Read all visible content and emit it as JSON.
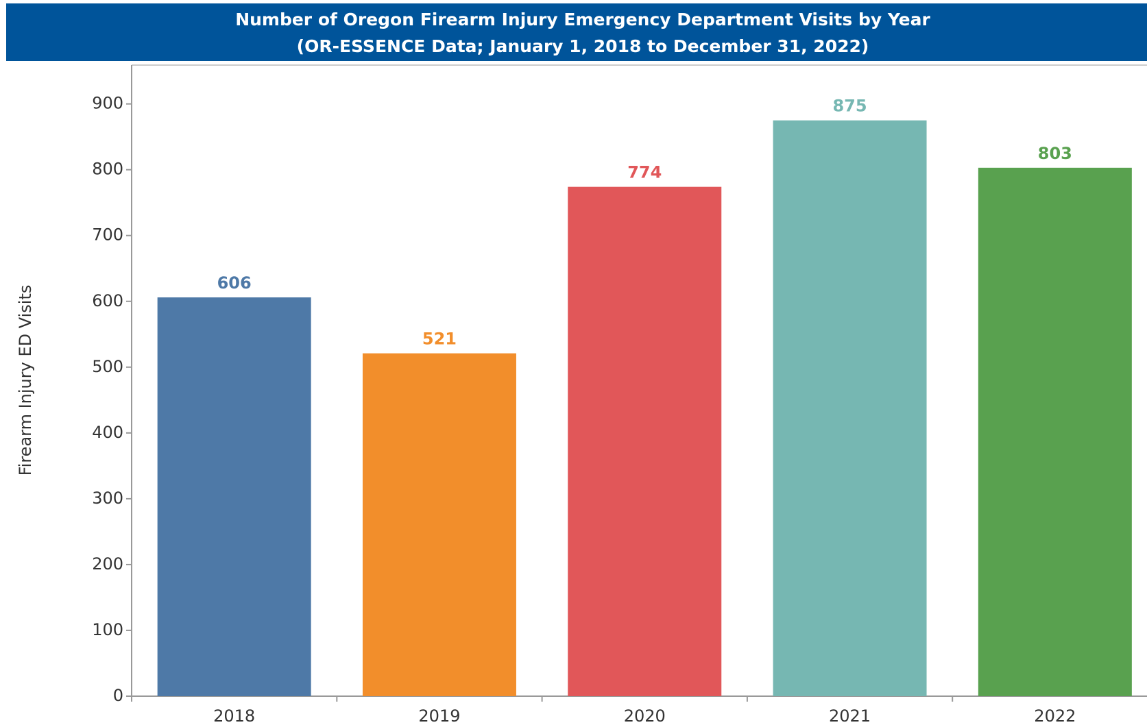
{
  "chart_data": {
    "type": "bar",
    "title": "Number of Oregon Firearm Injury Emergency Department Visits by Year",
    "subtitle": "(OR-ESSENCE Data; January 1, 2018 to December 31, 2022)",
    "y_label": "Firearm Injury ED Visits",
    "categories": [
      "2018",
      "2019",
      "2020",
      "2021",
      "2022"
    ],
    "values": [
      606,
      521,
      774,
      875,
      803
    ],
    "colors": [
      "#4e79a7",
      "#f28e2b",
      "#e15759",
      "#76b7b2",
      "#59a14f"
    ],
    "ylim": [
      0,
      959
    ],
    "yticks": [
      0,
      100,
      200,
      300,
      400,
      500,
      600,
      700,
      800,
      900
    ]
  }
}
